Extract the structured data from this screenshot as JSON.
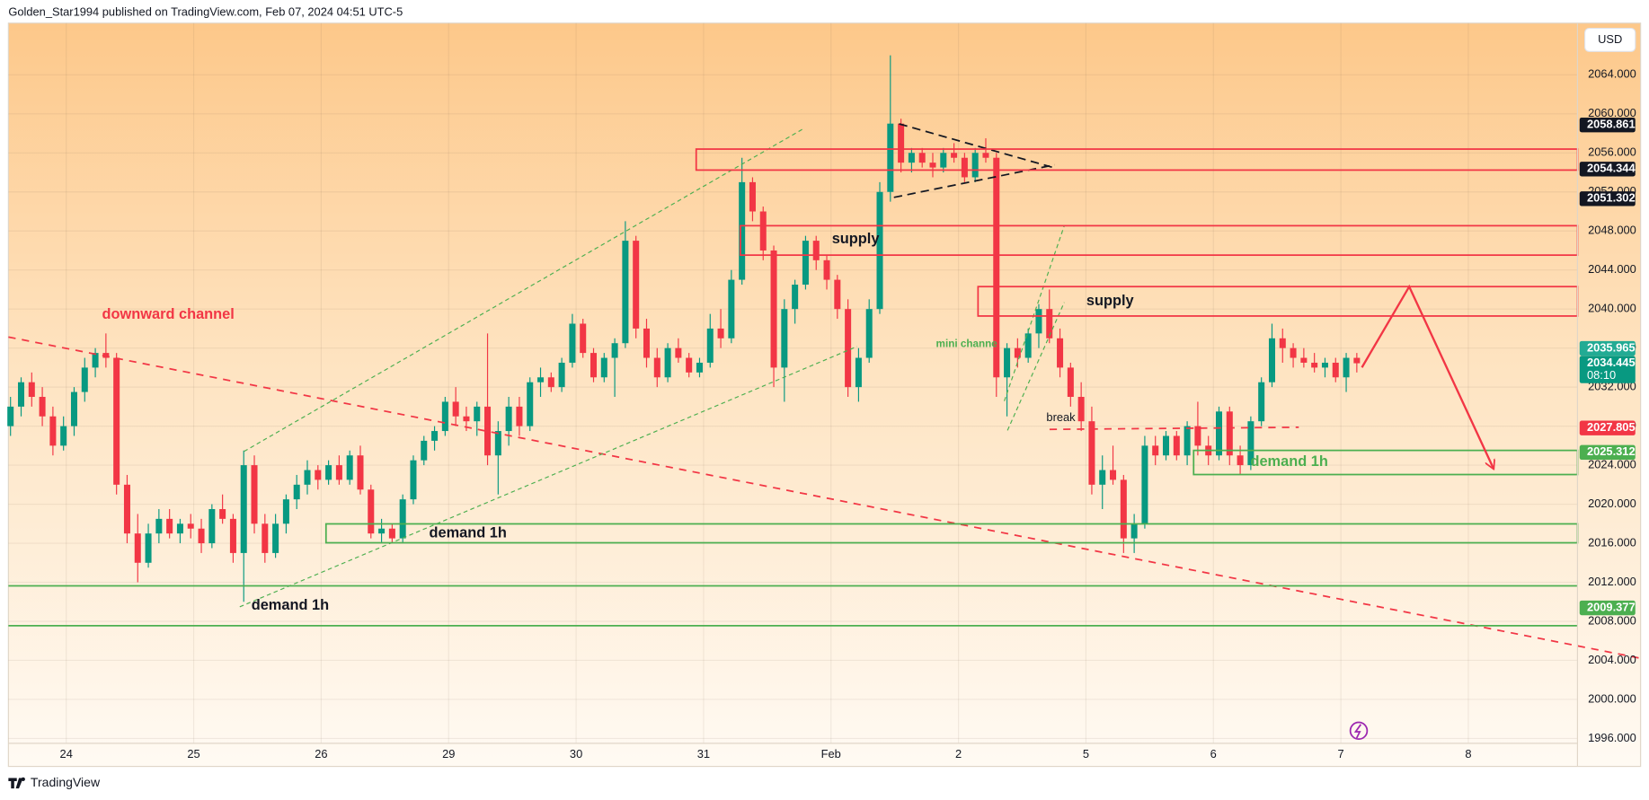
{
  "caption": "Golden_Star1994 published on TradingView.com, Feb 07, 2024 04:51 UTC-5",
  "currency": "USD",
  "brand": "TradingView",
  "annotations": [
    "downward channel",
    "supply",
    "supply",
    "demand 1h",
    "demand 1h",
    "demand 1h",
    "mini channe",
    "break"
  ],
  "chart_data": {
    "type": "candlestick",
    "categories": [
      "24",
      "25",
      "26",
      "29",
      "30",
      "31",
      "Feb",
      "2",
      "5",
      "6",
      "7",
      "8"
    ],
    "ylim": [
      1995.5,
      2069.3
    ],
    "yticks": [
      {
        "value": 1996,
        "label": "1996.000"
      },
      {
        "value": 2000,
        "label": "2000.000"
      },
      {
        "value": 2004,
        "label": "2004.000"
      },
      {
        "value": 2008,
        "label": "2008.000"
      },
      {
        "value": 2012,
        "label": "2012.000"
      },
      {
        "value": 2016,
        "label": "2016.000"
      },
      {
        "value": 2020,
        "label": "2020.000"
      },
      {
        "value": 2024,
        "label": "2024.000"
      },
      {
        "value": 2028,
        "label": "2028.000"
      },
      {
        "value": 2032,
        "label": "2032.000"
      },
      {
        "value": 2036,
        "label": "2036.000"
      },
      {
        "value": 2040,
        "label": "2040.000"
      },
      {
        "value": 2044,
        "label": "2044.000"
      },
      {
        "value": 2048,
        "label": "2048.000"
      },
      {
        "value": 2052,
        "label": "2052.000"
      },
      {
        "value": 2056,
        "label": "2056.000"
      },
      {
        "value": 2060,
        "label": "2060.000"
      },
      {
        "value": 2064,
        "label": "2064.000"
      }
    ],
    "grid": true,
    "up_color": "#089981",
    "down_color": "#f23645",
    "price_tags": [
      {
        "value": 2058.861,
        "label": "2058.861",
        "color": "#131722"
      },
      {
        "value": 2054.344,
        "label": "2054.344",
        "color": "#131722"
      },
      {
        "value": 2051.302,
        "label": "2051.302",
        "color": "#131722"
      },
      {
        "value": 2035.965,
        "label": "2035.965",
        "color": "#22ab94"
      },
      {
        "value": 2034.445,
        "label": "2034.445",
        "color": "#089981",
        "countdown": "08:10"
      },
      {
        "value": 2027.805,
        "label": "2027.805",
        "color": "#f23645"
      },
      {
        "value": 2025.312,
        "label": "2025.312",
        "color": "#4caf50"
      },
      {
        "value": 2009.377,
        "label": "2009.377",
        "color": "#4caf50"
      }
    ],
    "ohlc": [
      [
        2028,
        2031,
        2027,
        2030
      ],
      [
        2030,
        2033,
        2029,
        2032.5
      ],
      [
        2032.5,
        2033.5,
        2030,
        2031
      ],
      [
        2031,
        2032,
        2028,
        2029
      ],
      [
        2029,
        2030,
        2025,
        2026
      ],
      [
        2026,
        2029,
        2025.5,
        2028
      ],
      [
        2028,
        2032,
        2027,
        2031.5
      ],
      [
        2031.5,
        2035,
        2030.5,
        2034
      ],
      [
        2034,
        2036,
        2033,
        2035.5
      ],
      [
        2035.5,
        2037.5,
        2034,
        2035
      ],
      [
        2035,
        2035.5,
        2021,
        2022
      ],
      [
        2022,
        2023,
        2016,
        2017
      ],
      [
        2017,
        2019,
        2012,
        2014
      ],
      [
        2014,
        2018,
        2013.5,
        2017
      ],
      [
        2017,
        2019.5,
        2016,
        2018.5
      ],
      [
        2018.5,
        2019.5,
        2016.5,
        2017
      ],
      [
        2017,
        2018.5,
        2016,
        2018
      ],
      [
        2018,
        2019,
        2016.5,
        2017.5
      ],
      [
        2017.5,
        2018.5,
        2015,
        2016
      ],
      [
        2016,
        2020,
        2015.5,
        2019.5
      ],
      [
        2019.5,
        2021,
        2018,
        2018.5
      ],
      [
        2018.5,
        2019,
        2014,
        2015
      ],
      [
        2015,
        2025.5,
        2010,
        2024
      ],
      [
        2024,
        2025,
        2017,
        2018
      ],
      [
        2018,
        2019,
        2014,
        2015
      ],
      [
        2015,
        2019,
        2014.5,
        2018
      ],
      [
        2018,
        2021,
        2017,
        2020.5
      ],
      [
        2020.5,
        2023,
        2019.5,
        2022
      ],
      [
        2022,
        2024.5,
        2021,
        2023.5
      ],
      [
        2023.5,
        2024,
        2021.5,
        2022.5
      ],
      [
        2022.5,
        2024.5,
        2022,
        2024
      ],
      [
        2024,
        2025,
        2022,
        2022.5
      ],
      [
        2022.5,
        2025.5,
        2022,
        2025
      ],
      [
        2025,
        2026,
        2021,
        2021.5
      ],
      [
        2021.5,
        2022,
        2016.5,
        2017
      ],
      [
        2017,
        2018.5,
        2016,
        2017.5
      ],
      [
        2017.5,
        2018,
        2016,
        2016.5
      ],
      [
        2016.5,
        2021,
        2016,
        2020.5
      ],
      [
        2020.5,
        2025,
        2020,
        2024.5
      ],
      [
        2024.5,
        2027,
        2024,
        2026.5
      ],
      [
        2026.5,
        2028,
        2025.5,
        2027.5
      ],
      [
        2027.5,
        2031,
        2027,
        2030.5
      ],
      [
        2030.5,
        2032,
        2028,
        2029
      ],
      [
        2029,
        2030,
        2027.5,
        2028.5
      ],
      [
        2028.5,
        2030.5,
        2027,
        2030
      ],
      [
        2030,
        2037.5,
        2024,
        2025
      ],
      [
        2025,
        2028.5,
        2021,
        2027.5
      ],
      [
        2027.5,
        2031,
        2026,
        2030
      ],
      [
        2030,
        2031,
        2027,
        2028
      ],
      [
        2028,
        2033,
        2027.5,
        2032.5
      ],
      [
        2032.5,
        2034,
        2031,
        2033
      ],
      [
        2033,
        2033.5,
        2031.5,
        2032
      ],
      [
        2032,
        2035,
        2031.5,
        2034.5
      ],
      [
        2034.5,
        2039.5,
        2034,
        2038.5
      ],
      [
        2038.5,
        2039,
        2035,
        2035.5
      ],
      [
        2035.5,
        2036,
        2032.5,
        2033
      ],
      [
        2033,
        2035.5,
        2032.5,
        2035
      ],
      [
        2035,
        2037,
        2031,
        2036.5
      ],
      [
        2036.5,
        2049,
        2036,
        2047
      ],
      [
        2047,
        2047.5,
        2037,
        2038
      ],
      [
        2038,
        2039,
        2034,
        2035
      ],
      [
        2035,
        2036,
        2032,
        2033
      ],
      [
        2033,
        2036.5,
        2032.5,
        2036
      ],
      [
        2036,
        2037,
        2034.5,
        2035
      ],
      [
        2035,
        2035.5,
        2033,
        2033.5
      ],
      [
        2033.5,
        2035,
        2033,
        2034.5
      ],
      [
        2034.5,
        2039.5,
        2034,
        2038
      ],
      [
        2038,
        2040,
        2036,
        2037
      ],
      [
        2037,
        2044,
        2036.5,
        2043
      ],
      [
        2043,
        2055.5,
        2042.5,
        2053
      ],
      [
        2053,
        2053.5,
        2049,
        2050
      ],
      [
        2050,
        2050.5,
        2045,
        2046
      ],
      [
        2046,
        2046.5,
        2032,
        2034
      ],
      [
        2034,
        2041,
        2030.5,
        2040
      ],
      [
        2040,
        2043,
        2038.5,
        2042.5
      ],
      [
        2042.5,
        2047.5,
        2042,
        2047
      ],
      [
        2047,
        2047.5,
        2044,
        2045
      ],
      [
        2045,
        2045.5,
        2042,
        2043
      ],
      [
        2043,
        2043.5,
        2039,
        2040
      ],
      [
        2040,
        2041,
        2031,
        2032
      ],
      [
        2032,
        2036,
        2030.5,
        2035
      ],
      [
        2035,
        2041,
        2034.5,
        2040
      ],
      [
        2040,
        2053,
        2039.5,
        2052
      ],
      [
        2052,
        2066,
        2051,
        2059
      ],
      [
        2059,
        2059.5,
        2054,
        2055
      ],
      [
        2055,
        2056.5,
        2054,
        2056
      ],
      [
        2056,
        2056.5,
        2054.5,
        2055
      ],
      [
        2055,
        2056,
        2053.5,
        2054.5
      ],
      [
        2054.5,
        2056.5,
        2054,
        2056
      ],
      [
        2056,
        2057,
        2055,
        2055.5
      ],
      [
        2055.5,
        2056,
        2053,
        2053.5
      ],
      [
        2053.5,
        2056.5,
        2053,
        2056
      ],
      [
        2056,
        2057.5,
        2055,
        2055.5
      ],
      [
        2055.5,
        2056,
        2031,
        2033
      ],
      [
        2033,
        2036.5,
        2029,
        2036
      ],
      [
        2036,
        2037,
        2034,
        2035
      ],
      [
        2035,
        2038,
        2034.5,
        2037.5
      ],
      [
        2037.5,
        2040.5,
        2036,
        2040
      ],
      [
        2040,
        2042,
        2036.5,
        2037
      ],
      [
        2037,
        2038,
        2033,
        2034
      ],
      [
        2034,
        2034.5,
        2030,
        2031
      ],
      [
        2031,
        2032.5,
        2027.5,
        2028.5
      ],
      [
        2028.5,
        2030,
        2021,
        2022
      ],
      [
        2022,
        2025,
        2019.5,
        2023.5
      ],
      [
        2023.5,
        2026,
        2022,
        2022.5
      ],
      [
        2022.5,
        2023,
        2015,
        2016.5
      ],
      [
        2016.5,
        2019,
        2015,
        2018
      ],
      [
        2018,
        2027,
        2017.5,
        2026
      ],
      [
        2026,
        2027,
        2024,
        2025
      ],
      [
        2025,
        2027.5,
        2024.5,
        2027
      ],
      [
        2027,
        2027.5,
        2024.5,
        2025
      ],
      [
        2025,
        2028.5,
        2024,
        2028
      ],
      [
        2028,
        2030.5,
        2025,
        2026
      ],
      [
        2026,
        2027,
        2024,
        2025
      ],
      [
        2025,
        2030,
        2024.5,
        2029.5
      ],
      [
        2029.5,
        2030,
        2024,
        2025
      ],
      [
        2025,
        2026,
        2023,
        2024
      ],
      [
        2024,
        2029,
        2023.5,
        2028.5
      ],
      [
        2028.5,
        2033,
        2028,
        2032.5
      ],
      [
        2032.5,
        2038.5,
        2032,
        2037
      ],
      [
        2037,
        2038,
        2034.5,
        2036
      ],
      [
        2036,
        2036.5,
        2034,
        2035
      ],
      [
        2035,
        2036,
        2034,
        2034.5
      ],
      [
        2034.5,
        2035.5,
        2033.5,
        2034
      ],
      [
        2034,
        2035,
        2033,
        2034.5
      ],
      [
        2034.5,
        2035,
        2032.5,
        2033
      ],
      [
        2033,
        2035.5,
        2031.5,
        2035
      ],
      [
        2035,
        2035.5,
        2033.5,
        2034.445
      ]
    ]
  }
}
